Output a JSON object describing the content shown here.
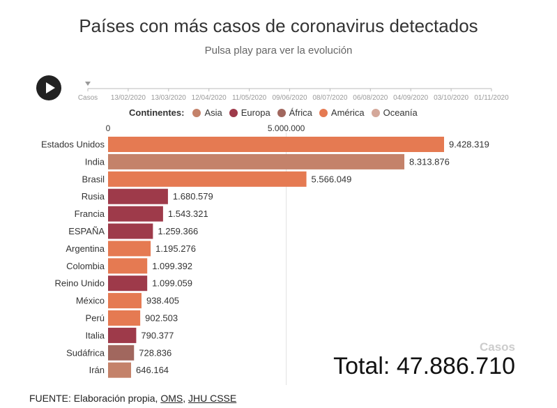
{
  "header": {
    "title": "Países con más casos de coronavirus detectados",
    "subtitle": "Pulsa play para ver la evolución"
  },
  "controls": {
    "play_icon": "play-icon"
  },
  "timeline": {
    "start_label": "Casos",
    "dates": [
      "13/02/2020",
      "13/03/2020",
      "12/04/2020",
      "11/05/2020",
      "09/06/2020",
      "08/07/2020",
      "06/08/2020",
      "04/09/2020",
      "03/10/2020",
      "01/11/2020"
    ]
  },
  "legend": {
    "title": "Continentes:",
    "items": [
      {
        "label": "Asia",
        "color": "#c4826a"
      },
      {
        "label": "Europa",
        "color": "#9e3a4a"
      },
      {
        "label": "África",
        "color": "#a1675e"
      },
      {
        "label": "América",
        "color": "#e57a52"
      },
      {
        "label": "Oceanía",
        "color": "#d4a89a"
      }
    ]
  },
  "chart_data": {
    "type": "bar",
    "orientation": "horizontal",
    "title": "",
    "xlabel": "",
    "ylabel": "",
    "x_ticks": [
      0,
      5000000
    ],
    "x_tick_labels": [
      "0",
      "5.000.000"
    ],
    "xlim": [
      0,
      10000000
    ],
    "grid": true,
    "legend_position": "top",
    "categories": [
      "Estados Unidos",
      "India",
      "Brasil",
      "Rusia",
      "Francia",
      "ESPAÑA",
      "Argentina",
      "Colombia",
      "Reino Unido",
      "México",
      "Perú",
      "Italia",
      "Sudáfrica",
      "Irán"
    ],
    "values": [
      9428319,
      8313876,
      5566049,
      1680579,
      1543321,
      1259366,
      1195276,
      1099392,
      1099059,
      938405,
      902503,
      790377,
      728836,
      646164
    ],
    "value_labels": [
      "9.428.319",
      "8.313.876",
      "5.566.049",
      "1.680.579",
      "1.543.321",
      "1.259.366",
      "1.195.276",
      "1.099.392",
      "1.099.059",
      "938.405",
      "902.503",
      "790.377",
      "728.836",
      "646.164"
    ],
    "continents": [
      "América",
      "Asia",
      "América",
      "Europa",
      "Europa",
      "Europa",
      "América",
      "América",
      "Europa",
      "América",
      "América",
      "Europa",
      "África",
      "Asia"
    ]
  },
  "total": {
    "label": "Casos",
    "text": "Total: 47.886.710"
  },
  "source": {
    "prefix": "FUENTE: Elaboración propia, ",
    "link1": "OMS",
    "separator": ", ",
    "link2": "JHU CSSE"
  }
}
